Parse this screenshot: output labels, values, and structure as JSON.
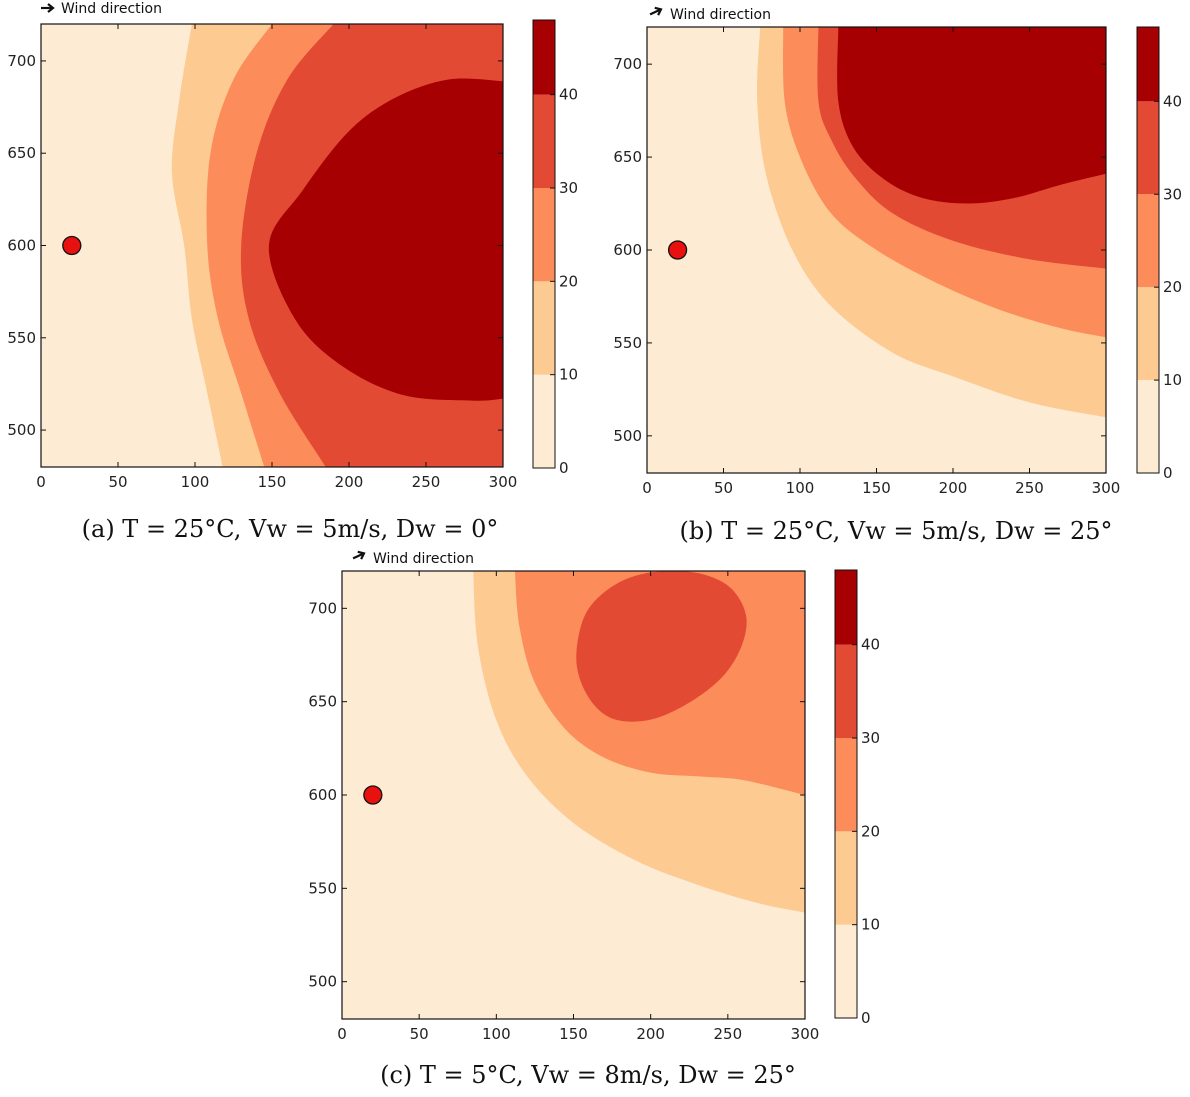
{
  "colors": {
    "levels": [
      "#fdebd3",
      "#fdca92",
      "#fc8c5a",
      "#e34a33",
      "#a70002"
    ],
    "marker_fill": "#e8110f",
    "marker_edge": "#111111"
  },
  "wind_label": "Wind direction",
  "chart_data": [
    {
      "type": "contourf",
      "caption": "(a) T = 25°C, Vw = 5m/s, Dw = 0°",
      "wind_angle_deg": 0,
      "xlim": [
        0,
        300
      ],
      "ylim": [
        480,
        720
      ],
      "xticks": [
        0,
        50,
        100,
        150,
        200,
        250,
        300
      ],
      "yticks": [
        500,
        550,
        600,
        650,
        700
      ],
      "levels": [
        0,
        10,
        20,
        30,
        40,
        48
      ],
      "colorbar_ticks": [
        0,
        10,
        20,
        30,
        40
      ],
      "source": {
        "x": 20,
        "y": 600
      },
      "contours": [
        {
          "level": 10,
          "points": [
            [
              98,
              720
            ],
            [
              90,
              680
            ],
            [
              85,
              640
            ],
            [
              93,
              600
            ],
            [
              98,
              560
            ],
            [
              108,
              520
            ],
            [
              118,
              480
            ]
          ]
        },
        {
          "level": 20,
          "points": [
            [
              150,
              720
            ],
            [
              125,
              690
            ],
            [
              110,
              650
            ],
            [
              108,
              600
            ],
            [
              115,
              560
            ],
            [
              130,
              520
            ],
            [
              145,
              480
            ]
          ]
        },
        {
          "level": 30,
          "points": [
            [
              190,
              720
            ],
            [
              160,
              690
            ],
            [
              140,
              650
            ],
            [
              130,
              600
            ],
            [
              135,
              560
            ],
            [
              155,
              520
            ],
            [
              185,
              480
            ]
          ]
        },
        {
          "level": 40,
          "points": [
            [
              300,
              689
            ],
            [
              265,
              690
            ],
            [
              230,
              680
            ],
            [
              200,
              662
            ],
            [
              170,
              630
            ],
            [
              148,
              600
            ],
            [
              165,
              560
            ],
            [
              195,
              535
            ],
            [
              235,
              519
            ],
            [
              280,
              516
            ],
            [
              300,
              517
            ]
          ]
        }
      ]
    },
    {
      "type": "contourf",
      "caption": "(b) T = 25°C, Vw = 5m/s, Dw = 25°",
      "wind_angle_deg": 25,
      "xlim": [
        0,
        300
      ],
      "ylim": [
        480,
        720
      ],
      "xticks": [
        0,
        50,
        100,
        150,
        200,
        250,
        300
      ],
      "yticks": [
        500,
        550,
        600,
        650,
        700
      ],
      "levels": [
        0,
        10,
        20,
        30,
        40,
        48
      ],
      "colorbar_ticks": [
        0,
        10,
        20,
        30,
        40
      ],
      "source": {
        "x": 20,
        "y": 600
      },
      "contours": [
        {
          "level": 10,
          "points": [
            [
              74,
              720
            ],
            [
              72,
              680
            ],
            [
              78,
              640
            ],
            [
              95,
              600
            ],
            [
              120,
              570
            ],
            [
              160,
              545
            ],
            [
              200,
              532
            ],
            [
              250,
              518
            ],
            [
              300,
              510
            ]
          ]
        },
        {
          "level": 20,
          "points": [
            [
              89,
              720
            ],
            [
              90,
              680
            ],
            [
              100,
              650
            ],
            [
              120,
              620
            ],
            [
              150,
              600
            ],
            [
              190,
              582
            ],
            [
              230,
              568
            ],
            [
              270,
              558
            ],
            [
              300,
              553
            ]
          ]
        },
        {
          "level": 30,
          "points": [
            [
              112,
              720
            ],
            [
              112,
              680
            ],
            [
              120,
              660
            ],
            [
              135,
              640
            ],
            [
              160,
              620
            ],
            [
              200,
              605
            ],
            [
              250,
              595
            ],
            [
              300,
              590
            ]
          ]
        },
        {
          "level": 40,
          "points": [
            [
              125,
              720
            ],
            [
              125,
              680
            ],
            [
              135,
              655
            ],
            [
              155,
              638
            ],
            [
              180,
              628
            ],
            [
              210,
              625
            ],
            [
              240,
              628
            ],
            [
              270,
              635
            ],
            [
              300,
              641
            ]
          ]
        }
      ]
    },
    {
      "type": "contourf",
      "caption": "(c) T = 5°C, Vw = 8m/s, Dw = 25°",
      "wind_angle_deg": 25,
      "xlim": [
        0,
        300
      ],
      "ylim": [
        480,
        720
      ],
      "xticks": [
        0,
        50,
        100,
        150,
        200,
        250,
        300
      ],
      "yticks": [
        500,
        550,
        600,
        650,
        700
      ],
      "levels": [
        0,
        10,
        20,
        30,
        40,
        48
      ],
      "colorbar_ticks": [
        0,
        10,
        20,
        30,
        40
      ],
      "source": {
        "x": 20,
        "y": 600
      },
      "contours": [
        {
          "level": 10,
          "points": [
            [
              85,
              720
            ],
            [
              88,
              680
            ],
            [
              100,
              640
            ],
            [
              120,
              610
            ],
            [
              150,
              585
            ],
            [
              190,
              565
            ],
            [
              230,
              552
            ],
            [
              270,
              542
            ],
            [
              300,
              537
            ]
          ]
        },
        {
          "level": 20,
          "points": [
            [
              112,
              720
            ],
            [
              115,
              690
            ],
            [
              125,
              660
            ],
            [
              145,
              635
            ],
            [
              170,
              620
            ],
            [
              200,
              612
            ],
            [
              230,
              610
            ],
            [
              260,
              608
            ],
            [
              300,
              600
            ]
          ]
        },
        {
          "level": 30,
          "points": [
            [
              155,
              691
            ],
            [
              165,
              705
            ],
            [
              185,
              716
            ],
            [
              210,
              720
            ],
            [
              235,
              718
            ],
            [
              253,
              710
            ],
            [
              262,
              695
            ],
            [
              258,
              678
            ],
            [
              245,
              662
            ],
            [
              222,
              648
            ],
            [
              198,
              640
            ],
            [
              175,
              641
            ],
            [
              160,
              652
            ],
            [
              152,
              670
            ]
          ]
        }
      ]
    }
  ]
}
